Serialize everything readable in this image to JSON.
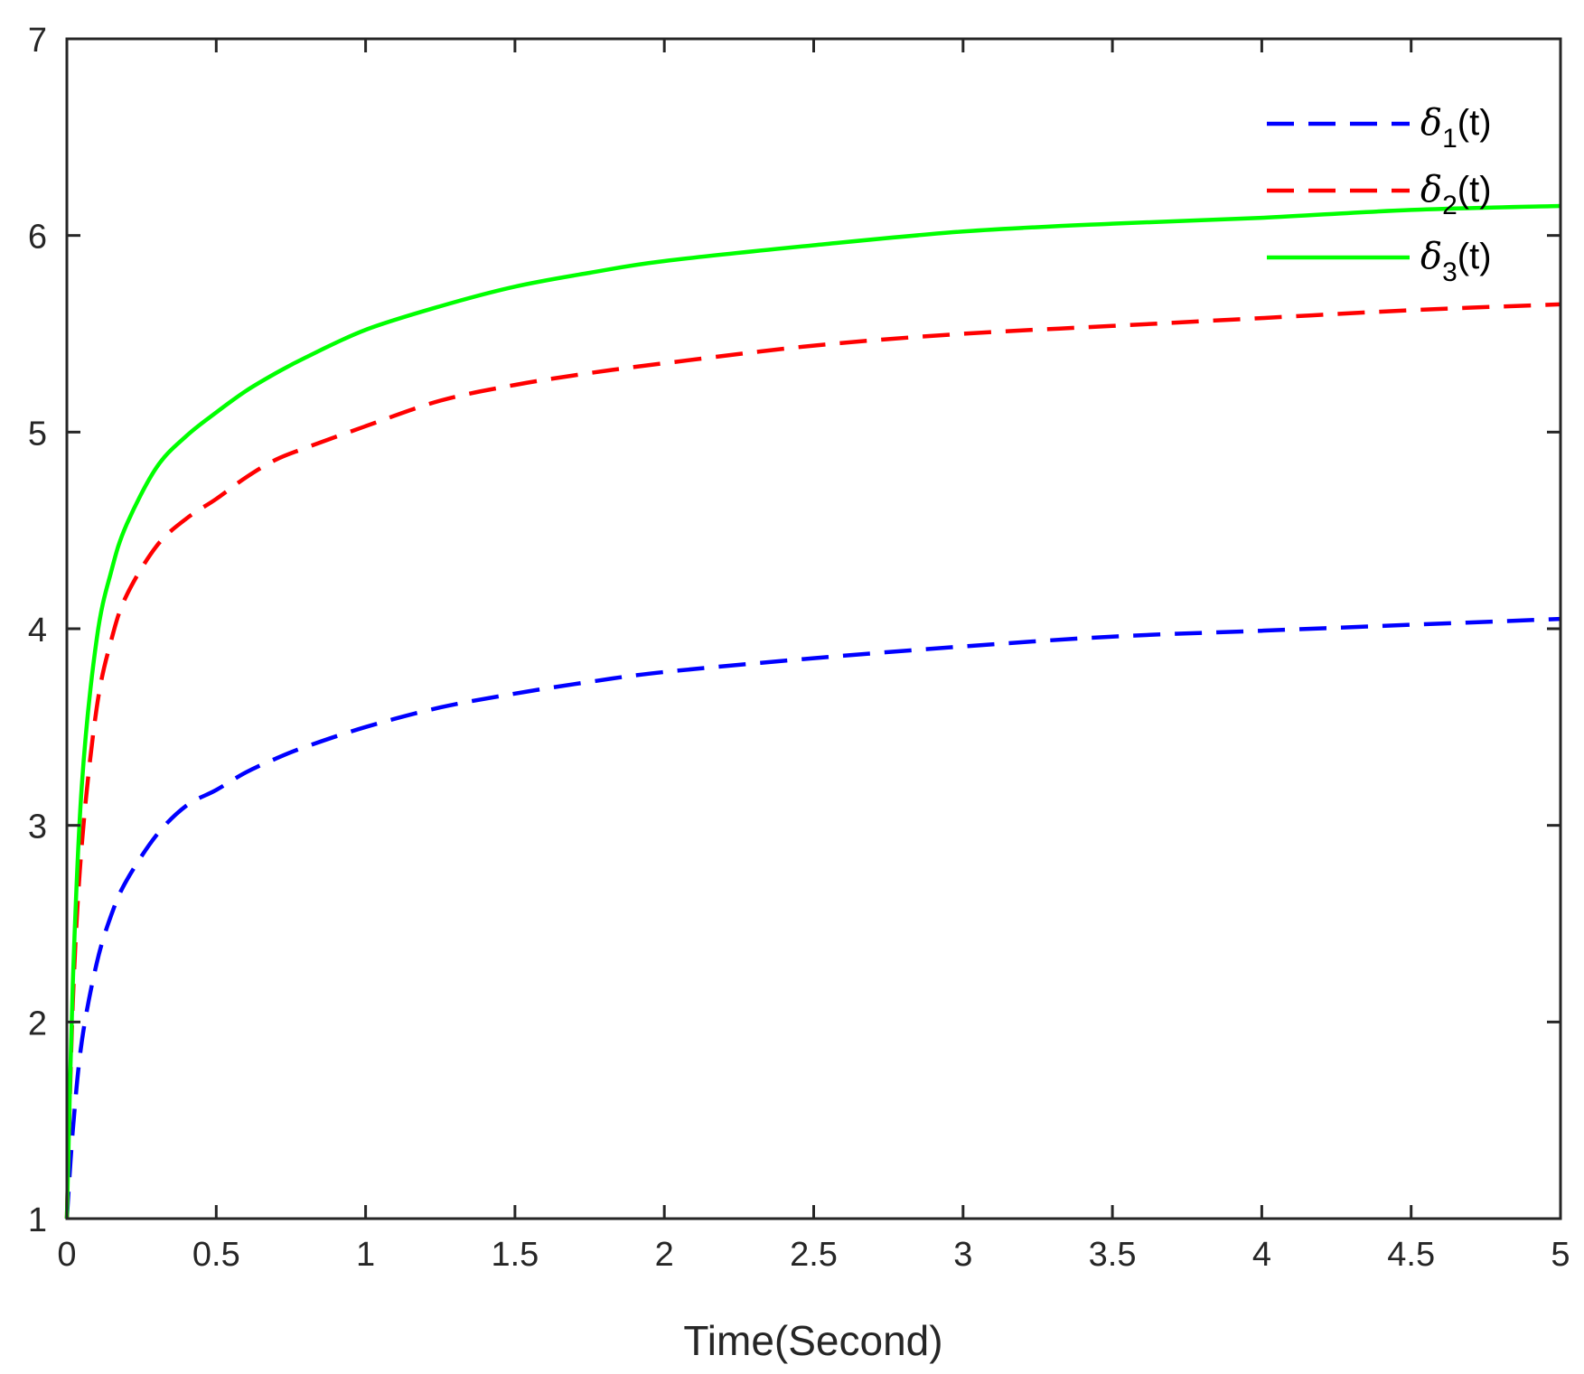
{
  "chart_data": {
    "type": "line",
    "title": "",
    "xlabel": "Time(Second)",
    "ylabel": "",
    "xlim": [
      0,
      5
    ],
    "ylim": [
      1,
      7
    ],
    "xticks": [
      0,
      0.5,
      1,
      1.5,
      2,
      2.5,
      3,
      3.5,
      4,
      4.5,
      5
    ],
    "xtick_labels": [
      "0",
      "0.5",
      "1",
      "1.5",
      "2",
      "2.5",
      "3",
      "3.5",
      "4",
      "4.5",
      "5"
    ],
    "yticks": [
      1,
      2,
      3,
      4,
      5,
      6,
      7
    ],
    "ytick_labels": [
      "1",
      "2",
      "3",
      "4",
      "5",
      "6",
      "7"
    ],
    "grid": false,
    "legend_position": "top-right",
    "series": [
      {
        "name": "δ1(t)",
        "legend": {
          "symbol": "δ",
          "sub": "1",
          "suffix": "(t)"
        },
        "color": "#0000ff",
        "style": "dashed",
        "x": [
          0,
          0.02,
          0.05,
          0.1,
          0.15,
          0.2,
          0.3,
          0.4,
          0.5,
          0.6,
          0.7,
          0.8,
          1.0,
          1.25,
          1.5,
          1.75,
          2.0,
          2.5,
          3.0,
          3.5,
          4.0,
          4.5,
          5.0
        ],
        "y": [
          1.0,
          1.45,
          1.9,
          2.3,
          2.55,
          2.72,
          2.95,
          3.1,
          3.18,
          3.27,
          3.34,
          3.4,
          3.5,
          3.6,
          3.67,
          3.73,
          3.78,
          3.85,
          3.91,
          3.96,
          3.99,
          4.02,
          4.05
        ]
      },
      {
        "name": "δ2(t)",
        "legend": {
          "symbol": "δ",
          "sub": "2",
          "suffix": "(t)"
        },
        "color": "#ff0000",
        "style": "dashed",
        "x": [
          0,
          0.02,
          0.05,
          0.1,
          0.15,
          0.2,
          0.3,
          0.4,
          0.5,
          0.6,
          0.7,
          0.8,
          1.0,
          1.25,
          1.5,
          1.75,
          2.0,
          2.5,
          3.0,
          3.5,
          4.0,
          4.5,
          5.0
        ],
        "y": [
          1.0,
          2.1,
          2.9,
          3.6,
          3.95,
          4.17,
          4.42,
          4.56,
          4.66,
          4.77,
          4.86,
          4.92,
          5.03,
          5.16,
          5.24,
          5.3,
          5.35,
          5.44,
          5.5,
          5.54,
          5.58,
          5.62,
          5.65
        ]
      },
      {
        "name": "δ3(t)",
        "legend": {
          "symbol": "δ",
          "sub": "3",
          "suffix": "(t)"
        },
        "color": "#00ff00",
        "style": "solid",
        "x": [
          0,
          0.02,
          0.05,
          0.1,
          0.15,
          0.2,
          0.3,
          0.4,
          0.5,
          0.6,
          0.7,
          0.8,
          1.0,
          1.25,
          1.5,
          1.75,
          2.0,
          2.5,
          3.0,
          3.5,
          4.0,
          4.5,
          5.0
        ],
        "y": [
          1.0,
          2.2,
          3.2,
          3.95,
          4.3,
          4.53,
          4.82,
          4.98,
          5.1,
          5.21,
          5.3,
          5.38,
          5.52,
          5.64,
          5.74,
          5.81,
          5.87,
          5.95,
          6.02,
          6.06,
          6.09,
          6.13,
          6.15
        ]
      }
    ]
  }
}
